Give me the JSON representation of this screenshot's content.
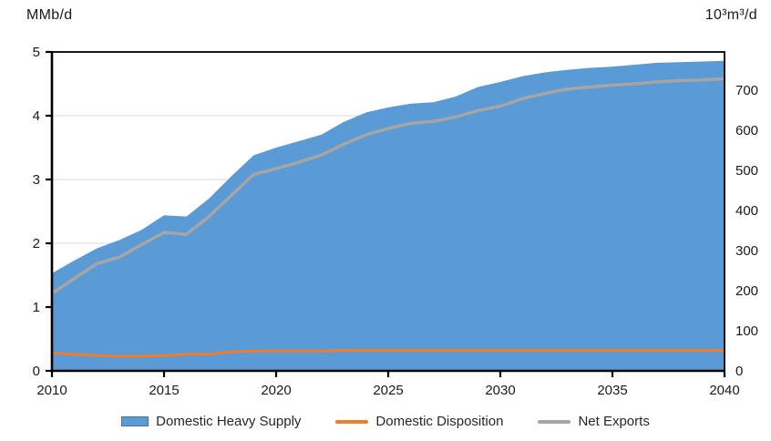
{
  "chart": {
    "left_unit_label": "MMb/d",
    "right_unit_label": "10³m³/d"
  },
  "chart_data": {
    "type": "area",
    "title": "",
    "xlabel": "",
    "ylabel_left": "MMb/d",
    "ylabel_right": "10³m³/d",
    "grid": "horizontal",
    "legend_position": "bottom",
    "x_axis": {
      "min": 2010,
      "max": 2040,
      "ticks": [
        2010,
        2015,
        2020,
        2025,
        2030,
        2035,
        2040
      ]
    },
    "left_axis": {
      "min": 0,
      "max": 5,
      "ticks": [
        0,
        1,
        2,
        3,
        4,
        5
      ]
    },
    "right_axis": {
      "min": 0,
      "max": 795,
      "ticks": [
        0,
        100,
        200,
        300,
        400,
        500,
        600,
        700
      ]
    },
    "x": [
      2010,
      2011,
      2012,
      2013,
      2014,
      2015,
      2016,
      2017,
      2018,
      2019,
      2020,
      2021,
      2022,
      2023,
      2024,
      2025,
      2026,
      2027,
      2028,
      2029,
      2030,
      2031,
      2032,
      2033,
      2034,
      2035,
      2036,
      2037,
      2038,
      2039,
      2040
    ],
    "series": [
      {
        "name": "Domestic Heavy Supply",
        "render": "area",
        "color": "#5B9BD5",
        "values": [
          1.53,
          1.73,
          1.92,
          2.05,
          2.21,
          2.44,
          2.42,
          2.7,
          3.05,
          3.38,
          3.5,
          3.6,
          3.7,
          3.9,
          4.05,
          4.13,
          4.19,
          4.21,
          4.3,
          4.45,
          4.53,
          4.62,
          4.68,
          4.72,
          4.75,
          4.77,
          4.8,
          4.83,
          4.84,
          4.85,
          4.86
        ]
      },
      {
        "name": "Domestic Disposition",
        "render": "line",
        "color": "#ED7D31",
        "values": [
          0.28,
          0.26,
          0.24,
          0.23,
          0.23,
          0.24,
          0.26,
          0.26,
          0.3,
          0.31,
          0.31,
          0.31,
          0.31,
          0.32,
          0.32,
          0.32,
          0.32,
          0.32,
          0.32,
          0.32,
          0.32,
          0.32,
          0.32,
          0.32,
          0.32,
          0.32,
          0.32,
          0.32,
          0.32,
          0.32,
          0.32
        ]
      },
      {
        "name": "Net Exports",
        "render": "line",
        "color": "#A5A5A5",
        "values": [
          1.21,
          1.45,
          1.68,
          1.78,
          1.98,
          2.17,
          2.14,
          2.42,
          2.75,
          3.08,
          3.17,
          3.27,
          3.38,
          3.55,
          3.7,
          3.8,
          3.88,
          3.91,
          3.98,
          4.08,
          4.15,
          4.27,
          4.35,
          4.42,
          4.45,
          4.48,
          4.5,
          4.53,
          4.55,
          4.56,
          4.58
        ]
      }
    ],
    "style": {
      "gridline_color": "#D9D9D9",
      "axis_color": "#000000",
      "tick_label_color": "#1a1a1a"
    }
  }
}
